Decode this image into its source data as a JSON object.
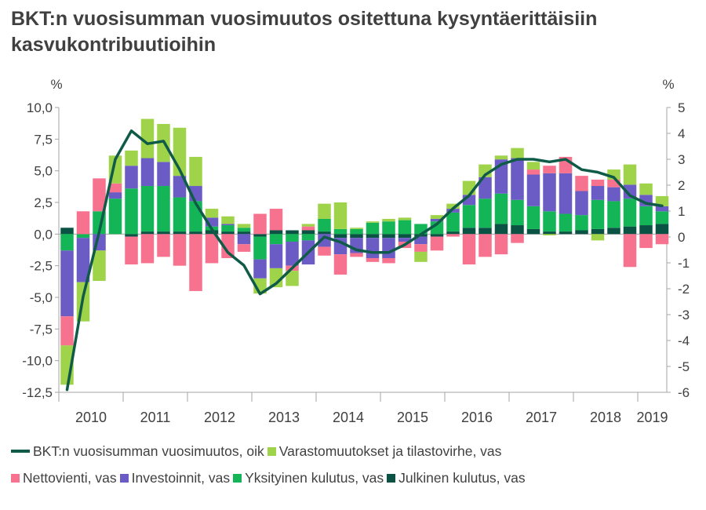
{
  "title": "BKT:n vuosisumman vuosimuutos ositettuna kysyntäerittäisiin kasvukontribuutioihin",
  "colors": {
    "gdp": "#0f5b48",
    "inventory": "#9fd34a",
    "net_exports": "#f7728e",
    "investment": "#6a5cc4",
    "private": "#13b556",
    "public": "#0a5244",
    "axis": "#a6a6a6",
    "text": "#404040"
  },
  "chart_data": {
    "type": "bar",
    "stacked": true,
    "left_unit": "%",
    "right_unit": "%",
    "left_ylim": [
      -12.5,
      10
    ],
    "right_ylim": [
      -6,
      5
    ],
    "left_ticks": [
      "10,0",
      "7,5",
      "5,0",
      "2,5",
      "0,0",
      "-2,5",
      "-5,0",
      "-7,5",
      "-10,0",
      "-12,5"
    ],
    "right_ticks": [
      "5",
      "4",
      "3",
      "2",
      "1",
      "0",
      "-1",
      "-2",
      "-3",
      "-4",
      "-5",
      "-6"
    ],
    "year_labels": [
      "2010",
      "2011",
      "2012",
      "2013",
      "2014",
      "2015",
      "2016",
      "2017",
      "2018",
      "2019"
    ],
    "quarters": [
      "2010Q1",
      "2010Q2",
      "2010Q3",
      "2010Q4",
      "2011Q1",
      "2011Q2",
      "2011Q3",
      "2011Q4",
      "2012Q1",
      "2012Q2",
      "2012Q3",
      "2012Q4",
      "2013Q1",
      "2013Q2",
      "2013Q3",
      "2013Q4",
      "2014Q1",
      "2014Q2",
      "2014Q3",
      "2014Q4",
      "2015Q1",
      "2015Q2",
      "2015Q3",
      "2015Q4",
      "2016Q1",
      "2016Q2",
      "2016Q3",
      "2016Q4",
      "2017Q1",
      "2017Q2",
      "2017Q3",
      "2017Q4",
      "2018Q1",
      "2018Q2",
      "2018Q3",
      "2018Q4",
      "2019Q1",
      "2019Q2"
    ],
    "legend": [
      {
        "key": "gdp",
        "kind": "line",
        "label": "BKT:n vuosisumman vuosimuutos, oik"
      },
      {
        "key": "inventory",
        "kind": "box",
        "label": "Varastomuutokset ja tilastovirhe, vas"
      },
      {
        "key": "net_exports",
        "kind": "box",
        "label": "Nettovienti, vas"
      },
      {
        "key": "investment",
        "kind": "box",
        "label": "Investoinnit, vas"
      },
      {
        "key": "private",
        "kind": "box",
        "label": "Yksityinen kulutus, vas"
      },
      {
        "key": "public",
        "kind": "box",
        "label": "Julkinen kulutus, vas"
      }
    ],
    "series": [
      {
        "name": "Julkinen kulutus, vas",
        "key": "public",
        "axis": "left",
        "values": [
          0.5,
          0,
          0,
          0,
          -0.2,
          0.2,
          0.2,
          0.2,
          0.2,
          0.3,
          0.2,
          0.2,
          -0.2,
          0.3,
          0.3,
          0.3,
          0.2,
          -0.3,
          -0.3,
          -0.3,
          -0.3,
          -0.3,
          -0.2,
          -0.2,
          0.2,
          0.5,
          0.5,
          0.8,
          0.7,
          0.4,
          0.2,
          0.2,
          0.3,
          0.4,
          0.5,
          0.6,
          0.7,
          0.8
        ]
      },
      {
        "name": "Yksityinen kulutus, vas",
        "key": "private",
        "axis": "left",
        "values": [
          -1.3,
          -0.3,
          1.8,
          2.8,
          3.6,
          3.6,
          3.6,
          2.7,
          2.4,
          0.3,
          0.5,
          0.3,
          -1.8,
          -0.8,
          -0.6,
          -0.5,
          1,
          0.4,
          0.4,
          0.9,
          1,
          1.1,
          0.8,
          1,
          1.5,
          1.8,
          2.3,
          2.4,
          2,
          1.8,
          1.6,
          1.4,
          1.2,
          2.3,
          2.1,
          2.2,
          1.5,
          1
        ]
      },
      {
        "name": "Investoinnit, vas",
        "key": "investment",
        "axis": "left",
        "values": [
          -5.2,
          -3.5,
          -1.3,
          0.5,
          1.8,
          2.2,
          1.9,
          1.7,
          1.2,
          0.7,
          0.1,
          -0.8,
          -1.5,
          -1.9,
          -1.9,
          -1.9,
          -1,
          -1.3,
          -1.2,
          -1.6,
          -1.6,
          -0.3,
          -0.6,
          0.2,
          0.3,
          0.8,
          1.7,
          2.7,
          3.3,
          2.5,
          3,
          3.2,
          1.9,
          1.1,
          1.1,
          1.1,
          0.9,
          0.4
        ]
      },
      {
        "name": "Nettovienti, vas",
        "key": "net_exports",
        "axis": "left",
        "values": [
          -2.3,
          1.8,
          2.6,
          0.7,
          -2.2,
          -2.3,
          -1.8,
          -2.5,
          -4.5,
          -2.3,
          -1.9,
          -0.6,
          1.6,
          1.7,
          -0.4,
          0.3,
          -0.7,
          -1.6,
          -0.3,
          -0.3,
          -0.4,
          -0.5,
          -0.6,
          -1.1,
          -0.2,
          -2.4,
          -1.8,
          -1.6,
          -0.7,
          0.4,
          0.6,
          1.3,
          1.2,
          0.5,
          0.6,
          -2.6,
          -1.1,
          -0.8
        ]
      },
      {
        "name": "Varastomuutokset ja tilastovirhe, vas",
        "key": "inventory",
        "axis": "left",
        "values": [
          -3.1,
          -3.1,
          -2.4,
          2.2,
          1.2,
          3.1,
          3,
          3.8,
          2.3,
          0.7,
          0.6,
          0.3,
          -1.2,
          -1.5,
          -1.2,
          0.2,
          1.2,
          2.1,
          0.1,
          0.1,
          0.2,
          0.2,
          -0.8,
          0.3,
          0.4,
          1.1,
          1,
          0.3,
          0.8,
          0.6,
          -0.1,
          0,
          0,
          -0.5,
          0.8,
          1.6,
          0.9,
          0.8
        ]
      },
      {
        "name": "BKT:n vuosisumman vuosimuutos, oik",
        "key": "gdp",
        "axis": "right",
        "type": "line",
        "values": [
          -5.9,
          -2.3,
          0.2,
          3,
          4.1,
          3.6,
          3.7,
          2.6,
          1.3,
          0.3,
          -0.6,
          -1.1,
          -2.2,
          -1.8,
          -1.2,
          -0.6,
          0,
          -0.2,
          -0.5,
          -0.6,
          -0.6,
          -0.3,
          0.1,
          0.5,
          1.1,
          1.6,
          2.4,
          2.8,
          3,
          3,
          2.9,
          3,
          2.6,
          2.5,
          2.3,
          1.6,
          1.3,
          1.2
        ]
      }
    ]
  }
}
